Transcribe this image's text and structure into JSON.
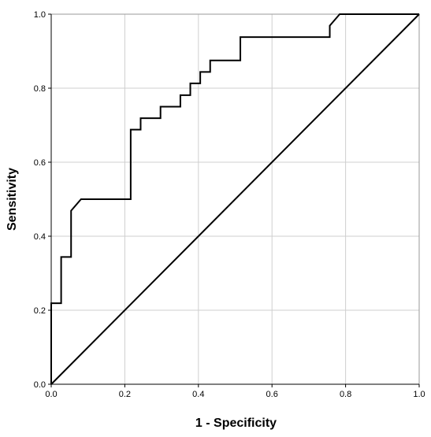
{
  "chart_data": {
    "type": "line",
    "xlabel": "1 - Specificity",
    "ylabel": "Sensitivity",
    "xlim": [
      0,
      1
    ],
    "ylim": [
      0,
      1
    ],
    "xticks": [
      "0.0",
      "0.2",
      "0.4",
      "0.6",
      "0.8",
      "1.0"
    ],
    "yticks": [
      "0.0",
      "0.2",
      "0.4",
      "0.6",
      "0.8",
      "1.0"
    ],
    "grid": true,
    "legend": "none",
    "series": [
      {
        "kind": "roc-curve",
        "color": "#000000",
        "x": [
          0.0,
          0.0,
          0.027,
          0.027,
          0.054,
          0.054,
          0.081,
          0.216,
          0.216,
          0.243,
          0.243,
          0.297,
          0.297,
          0.351,
          0.351,
          0.378,
          0.378,
          0.405,
          0.405,
          0.432,
          0.432,
          0.514,
          0.514,
          0.757,
          0.757,
          0.784,
          0.784,
          1.0
        ],
        "y": [
          0.0,
          0.219,
          0.219,
          0.344,
          0.344,
          0.469,
          0.5,
          0.5,
          0.688,
          0.688,
          0.719,
          0.719,
          0.75,
          0.75,
          0.781,
          0.781,
          0.813,
          0.813,
          0.844,
          0.844,
          0.875,
          0.875,
          0.938,
          0.938,
          0.969,
          1.0,
          1.0,
          1.0
        ]
      },
      {
        "kind": "reference-line",
        "color": "#000000",
        "x": [
          0.0,
          1.0
        ],
        "y": [
          0.0,
          1.0
        ]
      }
    ]
  }
}
